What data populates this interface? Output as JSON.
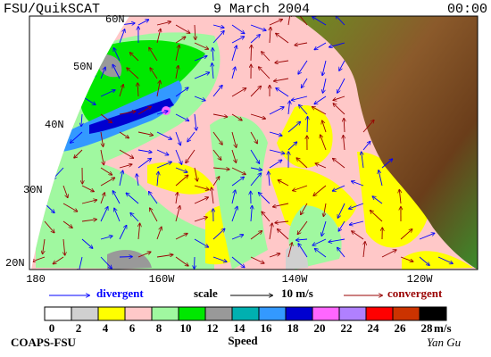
{
  "header": {
    "left": "FSU/QuikSCAT",
    "center": "9 March 2004",
    "right": "00:00"
  },
  "map": {
    "lat_labels": [
      "60N",
      "50N",
      "40N",
      "30N",
      "20N"
    ],
    "lon_labels": [
      "180",
      "160W",
      "140W",
      "120W"
    ]
  },
  "legend": {
    "divergent": "divergent",
    "divergent_color": "#0000ff",
    "scale": "scale",
    "scale_value": "10 m/s",
    "convergent": "convergent",
    "convergent_color": "#990000"
  },
  "colorbar": {
    "title": "Speed",
    "unit": "m/s",
    "values": [
      0,
      2,
      4,
      6,
      8,
      10,
      12,
      14,
      16,
      18,
      20,
      22,
      24,
      26,
      28
    ],
    "colors": [
      "#ffffff",
      "#d0d0d0",
      "#ffff00",
      "#ffc8c8",
      "#a0f8a0",
      "#00e800",
      "#999999",
      "#00b0b0",
      "#3399ff",
      "#0000d0",
      "#ff66ff",
      "#b080ff",
      "#ff0000",
      "#cc3300",
      "#000000"
    ]
  },
  "footer": {
    "left": "COAPS-FSU",
    "right": "Yan Gu"
  }
}
